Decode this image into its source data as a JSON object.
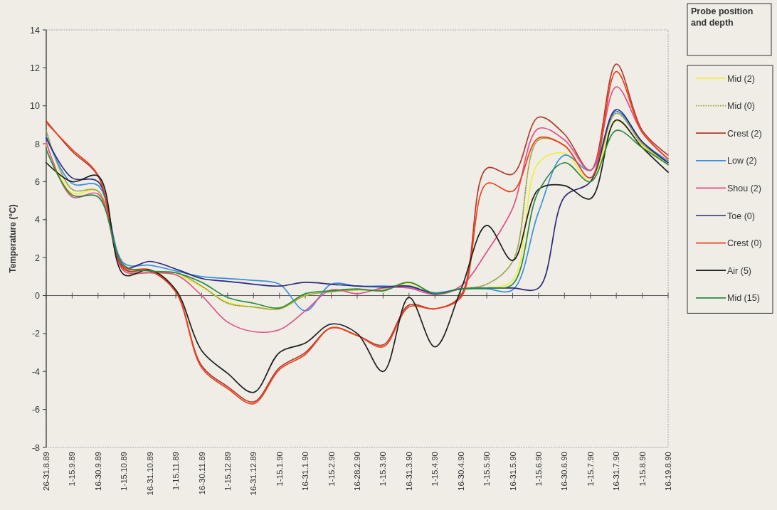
{
  "chart_data": {
    "type": "line",
    "ylabel": "Temperature (°C)",
    "legend_title": "Probe position and depth",
    "legend": "right",
    "categories": [
      "26-31.8.89",
      "1-15.9.89",
      "16-30.9.89",
      "1-15.10.89",
      "16-31.10.89",
      "1-15.11.89",
      "16-30.11.89",
      "1-15.12.89",
      "16-31.12.89",
      "1-15.1.90",
      "16-31.1.90",
      "1-15.2.90",
      "16-28.2.90",
      "1-15.3.90",
      "16-31.3.90",
      "1-15.4.90",
      "16-30.4.90",
      "1-15.5.90",
      "16-31.5.90",
      "1-15.6.90",
      "16-30.6.90",
      "1-15.7.90",
      "16-31.7.90",
      "1-15.8.90",
      "16-19.8.90"
    ],
    "ylim": [
      -8,
      14
    ],
    "yticks": [
      -8,
      -6,
      -4,
      -2,
      0,
      2,
      4,
      6,
      8,
      10,
      12,
      14
    ],
    "series": [
      {
        "name": "Mid (2)",
        "color": "#f2ee3a",
        "values": [
          8.0,
          5.4,
          5.5,
          1.3,
          1.2,
          1.1,
          0.45,
          -0.35,
          -0.6,
          -0.7,
          0.0,
          0.2,
          0.3,
          0.3,
          0.65,
          0.1,
          0.35,
          0.4,
          0.8,
          7.0,
          7.5,
          6.0,
          9.2,
          7.9,
          7.0
        ]
      },
      {
        "name": "Mid (0)",
        "color": "#9a9e3c",
        "line_style": "dotted",
        "values": [
          8.7,
          5.6,
          5.5,
          1.4,
          1.2,
          1.2,
          0.5,
          -0.4,
          -0.6,
          -0.7,
          0.0,
          0.2,
          0.3,
          0.3,
          0.7,
          0.1,
          0.35,
          0.6,
          1.8,
          8.2,
          7.9,
          6.2,
          9.6,
          8.0,
          7.0
        ]
      },
      {
        "name": "Crest (2)",
        "color": "#b03a2e",
        "values": [
          9.2,
          7.6,
          6.3,
          1.4,
          1.3,
          0.2,
          -3.7,
          -4.8,
          -5.6,
          -3.8,
          -3.0,
          -1.7,
          -2.1,
          -2.6,
          -0.5,
          -0.7,
          0.0,
          6.7,
          6.4,
          9.4,
          8.5,
          6.6,
          12.2,
          8.7,
          7.4
        ]
      },
      {
        "name": "Low (2)",
        "color": "#3c8fe0",
        "values": [
          8.4,
          5.9,
          5.8,
          1.7,
          1.6,
          1.3,
          1.0,
          0.9,
          0.8,
          0.6,
          -0.8,
          0.6,
          0.5,
          0.5,
          0.45,
          0.15,
          0.35,
          0.35,
          0.3,
          4.4,
          7.4,
          6.6,
          9.7,
          8.1,
          7.1
        ]
      },
      {
        "name": "Shou (2)",
        "color": "#e0508c",
        "values": [
          8.1,
          5.2,
          5.35,
          1.3,
          1.2,
          1.1,
          0.0,
          -1.4,
          -1.9,
          -1.8,
          -0.8,
          0.3,
          0.1,
          0.4,
          0.4,
          0.05,
          0.5,
          2.3,
          4.6,
          8.8,
          8.2,
          6.6,
          11.0,
          8.6,
          7.2
        ]
      },
      {
        "name": "Toe (0)",
        "color": "#2c2a7a",
        "values": [
          8.3,
          6.2,
          6.0,
          1.5,
          1.8,
          1.4,
          0.9,
          0.75,
          0.6,
          0.5,
          0.7,
          0.6,
          0.5,
          0.45,
          0.5,
          0.1,
          0.35,
          0.4,
          0.4,
          0.4,
          5.2,
          6.0,
          9.8,
          8.1,
          7.0
        ]
      },
      {
        "name": "Crest (0)",
        "color": "#f0401c",
        "values": [
          9.1,
          7.7,
          6.35,
          1.5,
          1.35,
          0.2,
          -3.8,
          -4.9,
          -5.7,
          -3.9,
          -3.1,
          -1.7,
          -2.1,
          -2.7,
          -0.6,
          -0.7,
          -0.1,
          5.9,
          5.5,
          8.3,
          7.9,
          6.2,
          11.8,
          8.6,
          7.2
        ]
      },
      {
        "name": "Air (5)",
        "color": "#1e1e1e",
        "values": [
          7.0,
          6.0,
          6.3,
          1.1,
          1.35,
          0.3,
          -2.9,
          -4.1,
          -5.1,
          -3.0,
          -2.5,
          -1.5,
          -2.0,
          -4.0,
          -0.1,
          -2.7,
          0.3,
          3.7,
          1.85,
          5.6,
          5.8,
          5.1,
          9.25,
          7.8,
          6.5
        ]
      },
      {
        "name": "Mid (15)",
        "color": "#2b8a3e",
        "values": [
          7.7,
          5.3,
          5.2,
          1.6,
          1.3,
          1.2,
          0.7,
          -0.1,
          -0.4,
          -0.65,
          0.1,
          0.25,
          0.35,
          0.25,
          0.7,
          0.1,
          0.35,
          0.4,
          0.6,
          5.5,
          7.0,
          6.0,
          8.7,
          7.8,
          6.9
        ]
      }
    ]
  }
}
